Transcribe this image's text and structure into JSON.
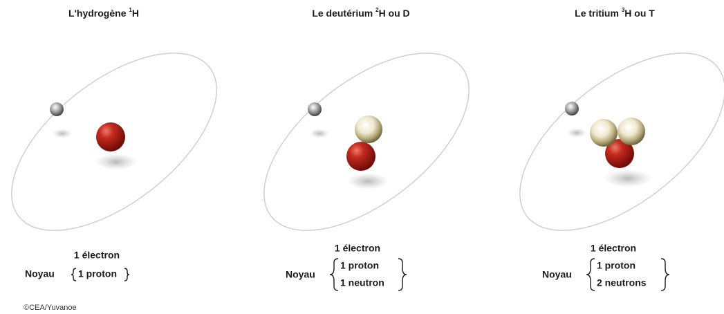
{
  "panels": [
    {
      "title": {
        "before": "L'hydrogène ",
        "sup": "1",
        "after": "H"
      },
      "electron": "1 électron",
      "nucleus_label": "Noyau",
      "nucleus": [
        "1 proton"
      ]
    },
    {
      "title": {
        "before": "Le deutérium ",
        "sup": "2",
        "after": "H ou D"
      },
      "electron": "1 électron",
      "nucleus_label": "Noyau",
      "nucleus": [
        "1 proton",
        "1 neutron"
      ]
    },
    {
      "title": {
        "before": "Le tritium ",
        "sup": "3",
        "after": "H ou T"
      },
      "electron": "1 électron",
      "nucleus_label": "Noyau",
      "nucleus": [
        "1 proton",
        "2 neutrons"
      ]
    }
  ],
  "credit": "©CEA/Yuvanoe"
}
